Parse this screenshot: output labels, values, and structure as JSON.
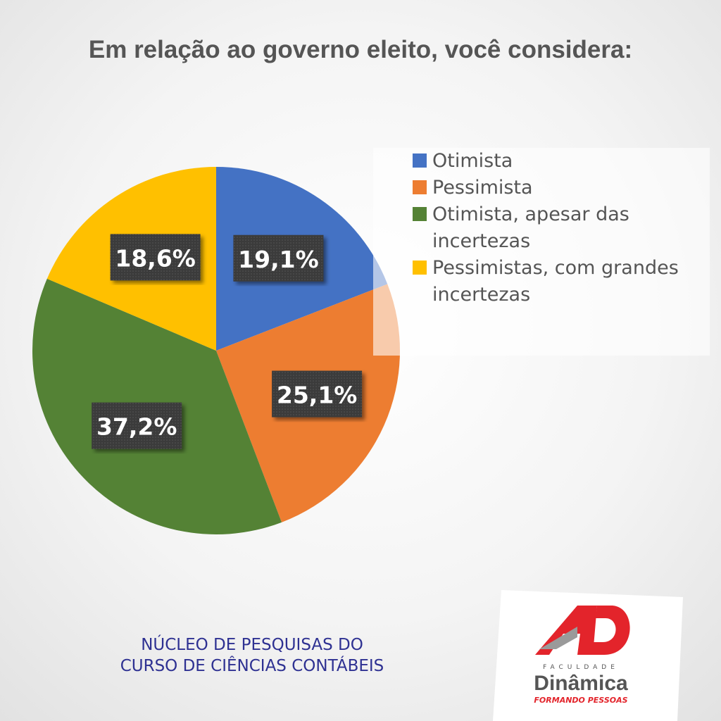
{
  "chart_data": {
    "type": "pie",
    "title": "Em relação ao governo eleito, você considera:",
    "categories": [
      "Otimista",
      "Pessimista",
      "Otimista, apesar das incertezas",
      "Pessimistas, com grandes incertezas"
    ],
    "values": [
      19.1,
      25.1,
      37.2,
      18.6
    ],
    "value_labels": [
      "19,1%",
      "25,1%",
      "37,2%",
      "18,6%"
    ],
    "colors": [
      "#4472c4",
      "#ed7d31",
      "#548235",
      "#ffc000"
    ],
    "legend": "right"
  },
  "footer": [
    "NÚCLEO DE PESQUISAS DO",
    "CURSO DE CIÊNCIAS CONTÁBEIS"
  ],
  "logo": {
    "top": "FACULDADE",
    "name": "Dinâmica",
    "tagline": "FORMANDO PESSOAS"
  }
}
